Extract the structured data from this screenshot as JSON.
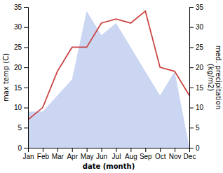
{
  "chart_data": {
    "type": "line",
    "categories": [
      "Jan",
      "Feb",
      "Mar",
      "Apr",
      "May",
      "Jun",
      "Jul",
      "Aug",
      "Sep",
      "Oct",
      "Nov",
      "Dec"
    ],
    "xlabel": "date (month)",
    "ylabel": "max temp (C)",
    "y2label": "med. precipitation\n(kg/m2)",
    "ylim": [
      0,
      35
    ],
    "yticks": [
      0,
      5,
      10,
      15,
      20,
      25,
      30,
      35
    ],
    "y2lim": [
      0,
      35
    ],
    "y2ticks": [
      0,
      5,
      10,
      15,
      20,
      25,
      30,
      35
    ],
    "grid": false,
    "series": [
      {
        "type": "area",
        "axis": "y2",
        "color": "#b8c8ee",
        "values": [
          9,
          9,
          13,
          17,
          34,
          28,
          31,
          25,
          19,
          13,
          19,
          0
        ]
      },
      {
        "type": "line",
        "color": "#cc4444",
        "values": [
          7,
          10,
          19,
          25,
          25,
          31,
          32,
          31,
          34,
          20,
          19,
          13
        ]
      }
    ]
  }
}
